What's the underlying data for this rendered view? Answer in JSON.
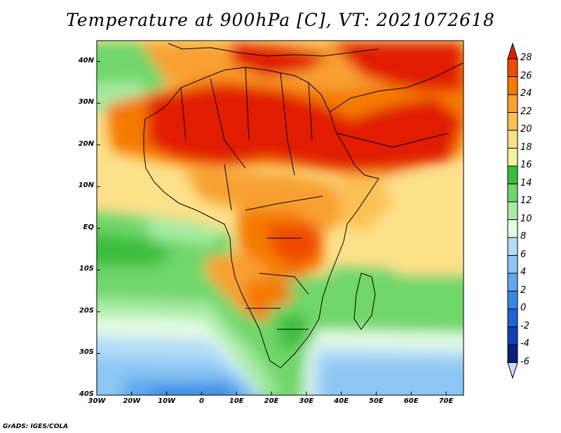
{
  "title": "Temperature at 900hPa [C], VT: 2021072618",
  "credit": "GrADS: IGES/COLA",
  "map": {
    "lat_labels": [
      "40N",
      "30N",
      "20N",
      "10N",
      "EQ",
      "10S",
      "20S",
      "30S",
      "40S"
    ],
    "lon_labels": [
      "30W",
      "20W",
      "10W",
      "0",
      "10E",
      "20E",
      "30E",
      "40E",
      "50E",
      "60E",
      "70E"
    ],
    "lat_range": [
      -40,
      45
    ],
    "lon_range": [
      -30,
      75
    ]
  },
  "colorbar": {
    "labels": [
      "28",
      "26",
      "24",
      "22",
      "20",
      "18",
      "16",
      "14",
      "12",
      "10",
      "8",
      "6",
      "4",
      "2",
      "0",
      "-2",
      "-4",
      "-6"
    ],
    "colors": [
      "#e11f00",
      "#f04b00",
      "#f57a00",
      "#f8a030",
      "#fbc155",
      "#fde08a",
      "#f1f3a0",
      "#3dbd3d",
      "#6fd66b",
      "#a6eba1",
      "#e3fbe3",
      "#b3dcf9",
      "#8cc6f3",
      "#5fa8ee",
      "#3787e6",
      "#1e64d6",
      "#1040b8",
      "#0b1f80"
    ],
    "bottom_color": "#cfd8f5"
  }
}
